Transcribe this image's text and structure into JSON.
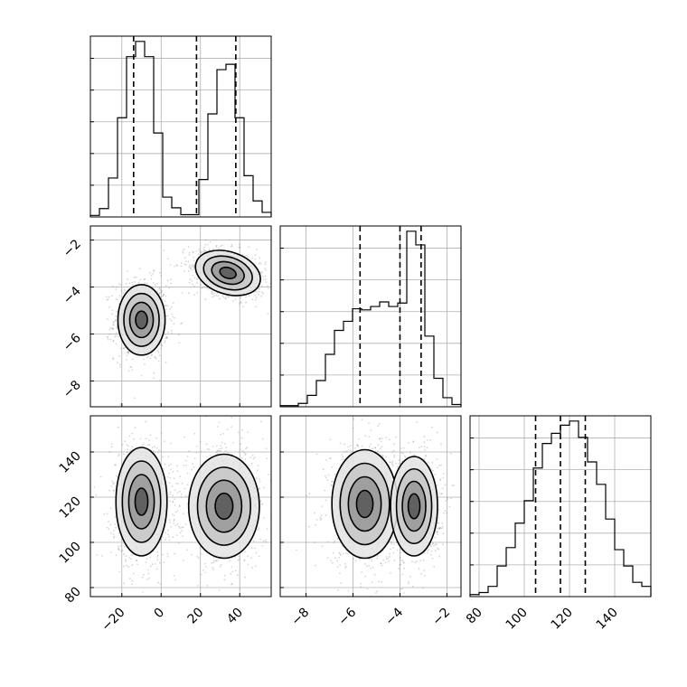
{
  "chart_data": {
    "type": "corner",
    "parameters": [
      {
        "range": [
          -36,
          56
        ],
        "ticks": [
          -20,
          0,
          20,
          40
        ],
        "tick_labels": [
          "−20",
          "0",
          "20",
          "40"
        ]
      },
      {
        "range": [
          -9.1,
          -1.4
        ],
        "ticks": [
          -8,
          -6,
          -4,
          -2
        ],
        "tick_labels": [
          "−8",
          "−6",
          "−4",
          "−2"
        ]
      },
      {
        "range": [
          76,
          156
        ],
        "ticks": [
          80,
          100,
          120,
          140
        ],
        "tick_labels": [
          "80",
          "100",
          "120",
          "140"
        ]
      }
    ],
    "quantile_lines": [
      [
        -14,
        18,
        38
      ],
      [
        -5.7,
        -4.0,
        -3.1
      ],
      [
        105,
        116,
        127
      ]
    ],
    "histograms": [
      {
        "bin_edges": [
          -36,
          -31.4,
          -26.8,
          -22.2,
          -17.6,
          -13,
          -8.4,
          -3.8,
          0.8,
          5.4,
          10,
          14.6,
          19.2,
          23.8,
          28.4,
          33,
          37.6,
          42.2,
          46.8,
          51.4,
          56
        ],
        "counts": [
          0.02,
          0.11,
          0.51,
          1.3,
          2.1,
          2.3,
          2.1,
          1.1,
          0.26,
          0.12,
          0.03,
          0.03,
          0.49,
          1.35,
          1.93,
          2.0,
          1.3,
          0.54,
          0.21,
          0.06
        ]
      },
      {
        "bin_edges": [
          -9.1,
          -8.715,
          -8.33,
          -7.945,
          -7.56,
          -7.175,
          -6.79,
          -6.405,
          -6.02,
          -5.635,
          -5.25,
          -4.865,
          -4.48,
          -4.095,
          -3.71,
          -3.325,
          -2.94,
          -2.555,
          -2.17,
          -1.785,
          -1.4
        ],
        "counts": [
          0.01,
          0.01,
          0.03,
          0.1,
          0.23,
          0.46,
          0.67,
          0.75,
          0.86,
          0.85,
          0.88,
          0.92,
          0.88,
          0.91,
          1.54,
          1.42,
          0.62,
          0.25,
          0.08,
          0.02
        ]
      },
      {
        "bin_edges": [
          76,
          80,
          84,
          88,
          92,
          96,
          100,
          104,
          108,
          112,
          116,
          120,
          124,
          128,
          132,
          136,
          140,
          144,
          148,
          152,
          156
        ],
        "counts": [
          0.01,
          0.02,
          0.05,
          0.15,
          0.24,
          0.36,
          0.47,
          0.63,
          0.75,
          0.8,
          0.84,
          0.86,
          0.78,
          0.66,
          0.55,
          0.38,
          0.23,
          0.15,
          0.07,
          0.05
        ]
      }
    ],
    "clusters_2d": [
      {
        "name": "p0-p1",
        "modes": [
          {
            "mx": -10,
            "my": -5.4,
            "sx": 6.0,
            "sy": 0.75,
            "w": 0.5
          },
          {
            "mx": 34,
            "my": -3.4,
            "sx": 8.5,
            "sy": 0.45,
            "w": 0.5,
            "rho": -0.3
          }
        ]
      },
      {
        "name": "p0-p2",
        "modes": [
          {
            "mx": -10,
            "my": 118,
            "sx": 6.5,
            "sy": 12.0,
            "w": 0.5
          },
          {
            "mx": 32,
            "my": 116,
            "sx": 9.0,
            "sy": 11.5,
            "w": 0.5
          }
        ]
      },
      {
        "name": "p1-p2",
        "modes": [
          {
            "mx": -5.5,
            "my": 117,
            "sx": 0.7,
            "sy": 12.0,
            "w": 0.5
          },
          {
            "mx": -3.4,
            "my": 116,
            "sx": 0.5,
            "sy": 11.0,
            "w": 0.5
          }
        ]
      }
    ],
    "grid": true,
    "colors": {
      "lines": "#000000",
      "points": "#8a8a8a",
      "grid": "#b0b0b0"
    }
  }
}
